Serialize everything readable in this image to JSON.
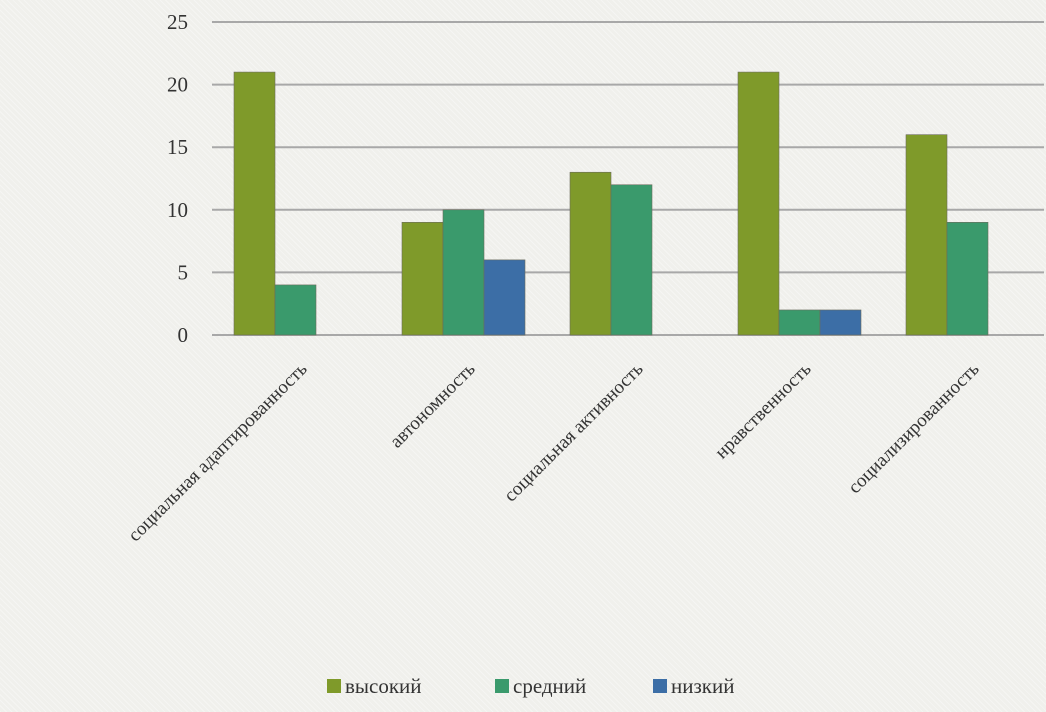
{
  "chart_data": {
    "type": "bar",
    "title": "",
    "xlabel": "",
    "ylabel": "",
    "ylim": [
      0,
      25
    ],
    "yticks": [
      "0",
      "5",
      "10",
      "15",
      "20",
      "25"
    ],
    "grid": true,
    "legend_position": "bottom",
    "categories": [
      "социальная адаптированность",
      "автономность",
      "социальная активность",
      "нравственность",
      "социализированность"
    ],
    "series": [
      {
        "name": "высокий",
        "color": "#7f9a2a",
        "values": [
          21,
          9,
          13,
          21,
          16
        ]
      },
      {
        "name": "средний",
        "color": "#3a9a6c",
        "values": [
          4,
          10,
          12,
          2,
          9
        ]
      },
      {
        "name": "низкий",
        "color": "#3c6ea6",
        "values": [
          0,
          6,
          0,
          2,
          0
        ]
      }
    ]
  }
}
